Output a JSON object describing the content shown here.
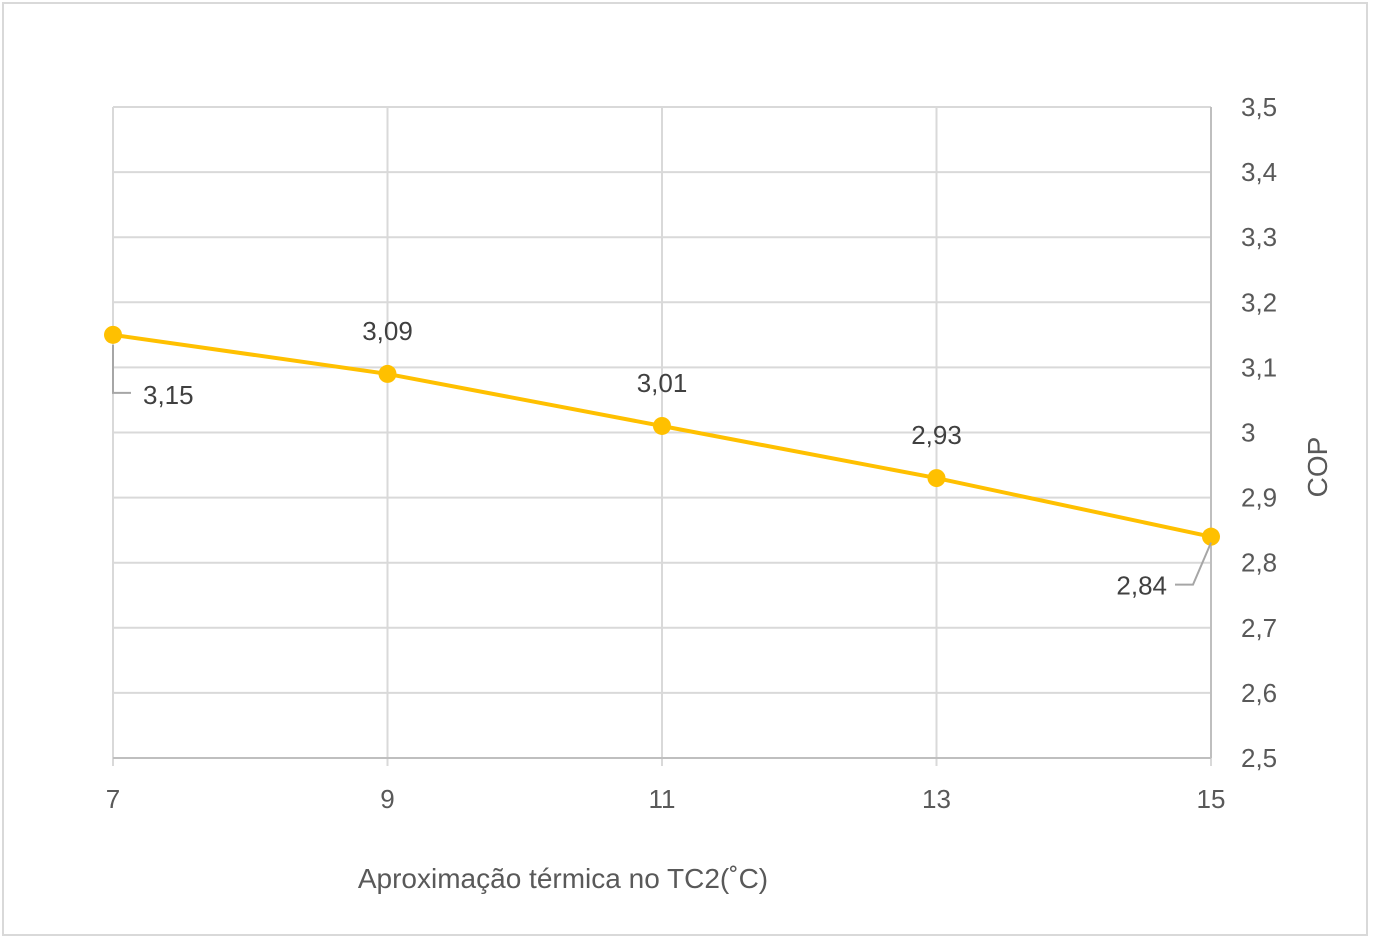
{
  "chart_data": {
    "type": "line",
    "title": "",
    "xlabel": "Aproximação térmica no TC2(˚C)",
    "ylabel": "COP",
    "x": [
      7,
      9,
      11,
      13,
      15
    ],
    "x_tick_labels": [
      "7",
      "9",
      "11",
      "13",
      "15"
    ],
    "xlim": [
      7,
      15
    ],
    "ylim": [
      2.5,
      3.5
    ],
    "y_ticks": [
      2.5,
      2.6,
      2.7,
      2.8,
      2.9,
      3.0,
      3.1,
      3.2,
      3.3,
      3.4,
      3.5
    ],
    "y_tick_labels": [
      "2,5",
      "2,6",
      "2,7",
      "2,8",
      "2,9",
      "3",
      "3,1",
      "3,2",
      "3,3",
      "3,4",
      "3,5"
    ],
    "y_axis_side": "right",
    "grid": true,
    "legend": "none",
    "series": [
      {
        "values": [
          3.15,
          3.09,
          3.01,
          2.93,
          2.84
        ],
        "data_labels": [
          "3,15",
          "3,09",
          "3,01",
          "2,93",
          "2,84"
        ],
        "color": "#FFC000"
      }
    ],
    "colors": {
      "grid": "#d9d9d9",
      "text": "#595959",
      "border": "#d9d9d9",
      "leader_line": "#a6a6a6"
    }
  }
}
